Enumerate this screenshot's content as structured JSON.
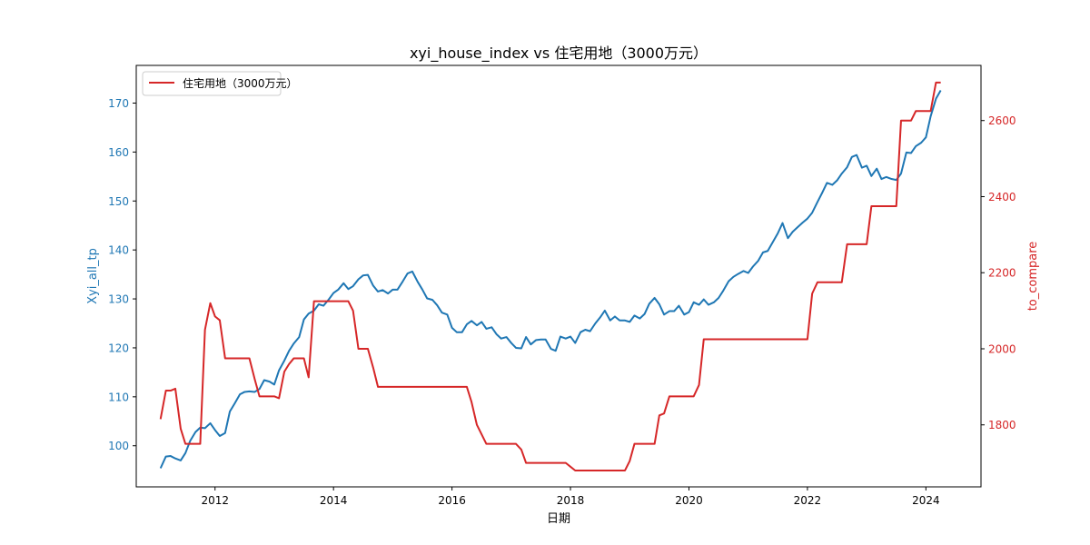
{
  "chart_data": {
    "type": "line",
    "title": "xyi_house_index vs 住宅用地（3000万元）",
    "xlabel": "日期",
    "ylabel_left": "Xyi_all_tp",
    "ylabel_right": "to_compare",
    "x_ticks": [
      "2012",
      "2014",
      "2016",
      "2018",
      "2020",
      "2022",
      "2024"
    ],
    "x_range": [
      2010.67,
      2024.93
    ],
    "y_left_ticks": [
      100,
      110,
      120,
      130,
      140,
      150,
      160,
      170
    ],
    "y_left_range": [
      91.6,
      177.7
    ],
    "y_right_ticks": [
      1800,
      2000,
      2200,
      2400,
      2600
    ],
    "y_right_range": [
      1637,
      2745
    ],
    "legend": {
      "position": "upper-left",
      "entries": [
        "住宅用地（3000万元）"
      ]
    },
    "colors": {
      "left": "#1f77b4",
      "right": "#d62728"
    },
    "series": [
      {
        "name": "Xyi_all_tp",
        "axis": "left",
        "color": "#1f77b4",
        "points": [
          [
            2011.08,
            95.4
          ],
          [
            2011.17,
            97.8
          ],
          [
            2011.25,
            97.9
          ],
          [
            2011.33,
            97.4
          ],
          [
            2011.42,
            97.0
          ],
          [
            2011.5,
            98.5
          ],
          [
            2011.58,
            101.0
          ],
          [
            2011.67,
            102.8
          ],
          [
            2011.75,
            103.7
          ],
          [
            2011.83,
            103.6
          ],
          [
            2011.92,
            104.6
          ],
          [
            2012.0,
            103.2
          ],
          [
            2012.08,
            102.0
          ],
          [
            2012.17,
            102.6
          ],
          [
            2012.25,
            107.0
          ],
          [
            2012.33,
            108.6
          ],
          [
            2012.42,
            110.5
          ],
          [
            2012.5,
            111.0
          ],
          [
            2012.58,
            111.1
          ],
          [
            2012.67,
            111.0
          ],
          [
            2012.75,
            111.6
          ],
          [
            2012.83,
            113.4
          ],
          [
            2012.92,
            113.1
          ],
          [
            2013.0,
            112.5
          ],
          [
            2013.08,
            115.4
          ],
          [
            2013.17,
            117.4
          ],
          [
            2013.25,
            119.4
          ],
          [
            2013.33,
            120.9
          ],
          [
            2013.42,
            122.2
          ],
          [
            2013.5,
            125.8
          ],
          [
            2013.58,
            127.0
          ],
          [
            2013.67,
            127.6
          ],
          [
            2013.75,
            128.9
          ],
          [
            2013.83,
            128.6
          ],
          [
            2013.92,
            129.9
          ],
          [
            2014.0,
            131.2
          ],
          [
            2014.08,
            131.9
          ],
          [
            2014.17,
            133.2
          ],
          [
            2014.25,
            132.0
          ],
          [
            2014.33,
            132.6
          ],
          [
            2014.42,
            134.0
          ],
          [
            2014.5,
            134.8
          ],
          [
            2014.58,
            134.9
          ],
          [
            2014.67,
            132.7
          ],
          [
            2014.75,
            131.5
          ],
          [
            2014.83,
            131.8
          ],
          [
            2014.92,
            131.1
          ],
          [
            2015.0,
            131.9
          ],
          [
            2015.08,
            131.9
          ],
          [
            2015.17,
            133.6
          ],
          [
            2015.25,
            135.2
          ],
          [
            2015.33,
            135.6
          ],
          [
            2015.42,
            133.5
          ],
          [
            2015.5,
            131.9
          ],
          [
            2015.58,
            130.1
          ],
          [
            2015.67,
            129.8
          ],
          [
            2015.75,
            128.7
          ],
          [
            2015.83,
            127.2
          ],
          [
            2015.92,
            126.8
          ],
          [
            2016.0,
            124.1
          ],
          [
            2016.08,
            123.2
          ],
          [
            2016.17,
            123.2
          ],
          [
            2016.25,
            124.8
          ],
          [
            2016.33,
            125.5
          ],
          [
            2016.42,
            124.6
          ],
          [
            2016.5,
            125.3
          ],
          [
            2016.58,
            123.9
          ],
          [
            2016.67,
            124.2
          ],
          [
            2016.75,
            122.8
          ],
          [
            2016.83,
            121.9
          ],
          [
            2016.92,
            122.2
          ],
          [
            2017.0,
            121.0
          ],
          [
            2017.08,
            120.0
          ],
          [
            2017.17,
            119.9
          ],
          [
            2017.25,
            122.2
          ],
          [
            2017.33,
            120.7
          ],
          [
            2017.42,
            121.6
          ],
          [
            2017.5,
            121.7
          ],
          [
            2017.58,
            121.7
          ],
          [
            2017.67,
            119.8
          ],
          [
            2017.75,
            119.4
          ],
          [
            2017.83,
            122.3
          ],
          [
            2017.92,
            121.9
          ],
          [
            2018.0,
            122.3
          ],
          [
            2018.08,
            121.0
          ],
          [
            2018.17,
            123.2
          ],
          [
            2018.25,
            123.7
          ],
          [
            2018.33,
            123.4
          ],
          [
            2018.42,
            125.0
          ],
          [
            2018.5,
            126.2
          ],
          [
            2018.58,
            127.6
          ],
          [
            2018.67,
            125.6
          ],
          [
            2018.75,
            126.4
          ],
          [
            2018.83,
            125.6
          ],
          [
            2018.92,
            125.6
          ],
          [
            2019.0,
            125.3
          ],
          [
            2019.08,
            126.6
          ],
          [
            2019.17,
            126.0
          ],
          [
            2019.25,
            126.9
          ],
          [
            2019.33,
            129.0
          ],
          [
            2019.42,
            130.2
          ],
          [
            2019.5,
            128.9
          ],
          [
            2019.58,
            126.8
          ],
          [
            2019.67,
            127.5
          ],
          [
            2019.75,
            127.5
          ],
          [
            2019.83,
            128.6
          ],
          [
            2019.92,
            126.8
          ],
          [
            2020.0,
            127.3
          ],
          [
            2020.08,
            129.3
          ],
          [
            2020.17,
            128.8
          ],
          [
            2020.25,
            129.9
          ],
          [
            2020.33,
            128.8
          ],
          [
            2020.42,
            129.3
          ],
          [
            2020.5,
            130.2
          ],
          [
            2020.58,
            131.7
          ],
          [
            2020.67,
            133.6
          ],
          [
            2020.75,
            134.5
          ],
          [
            2020.83,
            135.1
          ],
          [
            2020.92,
            135.7
          ],
          [
            2021.0,
            135.3
          ],
          [
            2021.08,
            136.6
          ],
          [
            2021.17,
            137.8
          ],
          [
            2021.25,
            139.5
          ],
          [
            2021.33,
            139.8
          ],
          [
            2021.42,
            141.7
          ],
          [
            2021.5,
            143.4
          ],
          [
            2021.58,
            145.5
          ],
          [
            2021.67,
            142.4
          ],
          [
            2021.75,
            143.7
          ],
          [
            2021.83,
            144.6
          ],
          [
            2021.92,
            145.6
          ],
          [
            2022.0,
            146.4
          ],
          [
            2022.08,
            147.6
          ],
          [
            2022.17,
            149.8
          ],
          [
            2022.25,
            151.7
          ],
          [
            2022.33,
            153.7
          ],
          [
            2022.42,
            153.3
          ],
          [
            2022.5,
            154.2
          ],
          [
            2022.58,
            155.6
          ],
          [
            2022.67,
            156.9
          ],
          [
            2022.75,
            159.0
          ],
          [
            2022.83,
            159.4
          ],
          [
            2022.92,
            156.8
          ],
          [
            2023.0,
            157.2
          ],
          [
            2023.08,
            155.1
          ],
          [
            2023.17,
            156.6
          ],
          [
            2023.25,
            154.5
          ],
          [
            2023.33,
            154.9
          ],
          [
            2023.42,
            154.5
          ],
          [
            2023.5,
            154.3
          ],
          [
            2023.58,
            155.6
          ],
          [
            2023.67,
            159.9
          ],
          [
            2023.75,
            159.8
          ],
          [
            2023.83,
            161.2
          ],
          [
            2023.92,
            161.9
          ],
          [
            2024.0,
            163.0
          ],
          [
            2024.08,
            167.3
          ],
          [
            2024.17,
            170.9
          ],
          [
            2024.25,
            172.6
          ]
        ]
      },
      {
        "name": "住宅用地（3000万元）",
        "axis": "right",
        "color": "#d62728",
        "points": [
          [
            2011.08,
            1815
          ],
          [
            2011.17,
            1890
          ],
          [
            2011.25,
            1890
          ],
          [
            2011.33,
            1895
          ],
          [
            2011.42,
            1790
          ],
          [
            2011.5,
            1750
          ],
          [
            2011.58,
            1750
          ],
          [
            2011.67,
            1750
          ],
          [
            2011.75,
            1750
          ],
          [
            2011.83,
            2050
          ],
          [
            2011.92,
            2120
          ],
          [
            2012.0,
            2085
          ],
          [
            2012.08,
            2075
          ],
          [
            2012.17,
            1975
          ],
          [
            2012.25,
            1975
          ],
          [
            2012.33,
            1975
          ],
          [
            2012.42,
            1975
          ],
          [
            2012.5,
            1975
          ],
          [
            2012.58,
            1975
          ],
          [
            2012.67,
            1920
          ],
          [
            2012.75,
            1875
          ],
          [
            2012.83,
            1875
          ],
          [
            2012.92,
            1875
          ],
          [
            2013.0,
            1875
          ],
          [
            2013.08,
            1870
          ],
          [
            2013.17,
            1940
          ],
          [
            2013.25,
            1960
          ],
          [
            2013.33,
            1975
          ],
          [
            2013.42,
            1975
          ],
          [
            2013.5,
            1975
          ],
          [
            2013.58,
            1925
          ],
          [
            2013.67,
            2125
          ],
          [
            2013.75,
            2125
          ],
          [
            2013.83,
            2125
          ],
          [
            2013.92,
            2125
          ],
          [
            2014.0,
            2125
          ],
          [
            2014.08,
            2125
          ],
          [
            2014.17,
            2125
          ],
          [
            2014.25,
            2125
          ],
          [
            2014.33,
            2100
          ],
          [
            2014.42,
            2000
          ],
          [
            2014.5,
            2000
          ],
          [
            2014.58,
            2000
          ],
          [
            2014.67,
            1950
          ],
          [
            2014.75,
            1900
          ],
          [
            2014.83,
            1900
          ],
          [
            2016.17,
            1900
          ],
          [
            2016.25,
            1900
          ],
          [
            2016.33,
            1860
          ],
          [
            2016.42,
            1800
          ],
          [
            2016.5,
            1775
          ],
          [
            2016.58,
            1750
          ],
          [
            2016.67,
            1750
          ],
          [
            2017.0,
            1750
          ],
          [
            2017.08,
            1750
          ],
          [
            2017.17,
            1735
          ],
          [
            2017.25,
            1700
          ],
          [
            2017.33,
            1700
          ],
          [
            2017.83,
            1700
          ],
          [
            2017.92,
            1700
          ],
          [
            2018.0,
            1690
          ],
          [
            2018.08,
            1680
          ],
          [
            2018.17,
            1680
          ],
          [
            2018.83,
            1680
          ],
          [
            2018.92,
            1680
          ],
          [
            2019.0,
            1705
          ],
          [
            2019.08,
            1750
          ],
          [
            2019.17,
            1750
          ],
          [
            2019.33,
            1750
          ],
          [
            2019.42,
            1750
          ],
          [
            2019.5,
            1825
          ],
          [
            2019.58,
            1830
          ],
          [
            2019.67,
            1875
          ],
          [
            2019.75,
            1875
          ],
          [
            2020.0,
            1875
          ],
          [
            2020.08,
            1875
          ],
          [
            2020.17,
            1905
          ],
          [
            2020.25,
            2025
          ],
          [
            2020.33,
            2025
          ],
          [
            2022.0,
            2025
          ],
          [
            2022.08,
            2145
          ],
          [
            2022.17,
            2175
          ],
          [
            2022.25,
            2175
          ],
          [
            2022.5,
            2175
          ],
          [
            2022.58,
            2175
          ],
          [
            2022.67,
            2275
          ],
          [
            2022.75,
            2275
          ],
          [
            2022.92,
            2275
          ],
          [
            2023.0,
            2275
          ],
          [
            2023.08,
            2375
          ],
          [
            2023.17,
            2375
          ],
          [
            2023.42,
            2375
          ],
          [
            2023.5,
            2375
          ],
          [
            2023.58,
            2600
          ],
          [
            2023.67,
            2600
          ],
          [
            2023.75,
            2600
          ],
          [
            2023.83,
            2625
          ],
          [
            2023.92,
            2625
          ],
          [
            2024.0,
            2625
          ],
          [
            2024.08,
            2625
          ],
          [
            2024.17,
            2700
          ],
          [
            2024.25,
            2700
          ]
        ]
      }
    ]
  }
}
